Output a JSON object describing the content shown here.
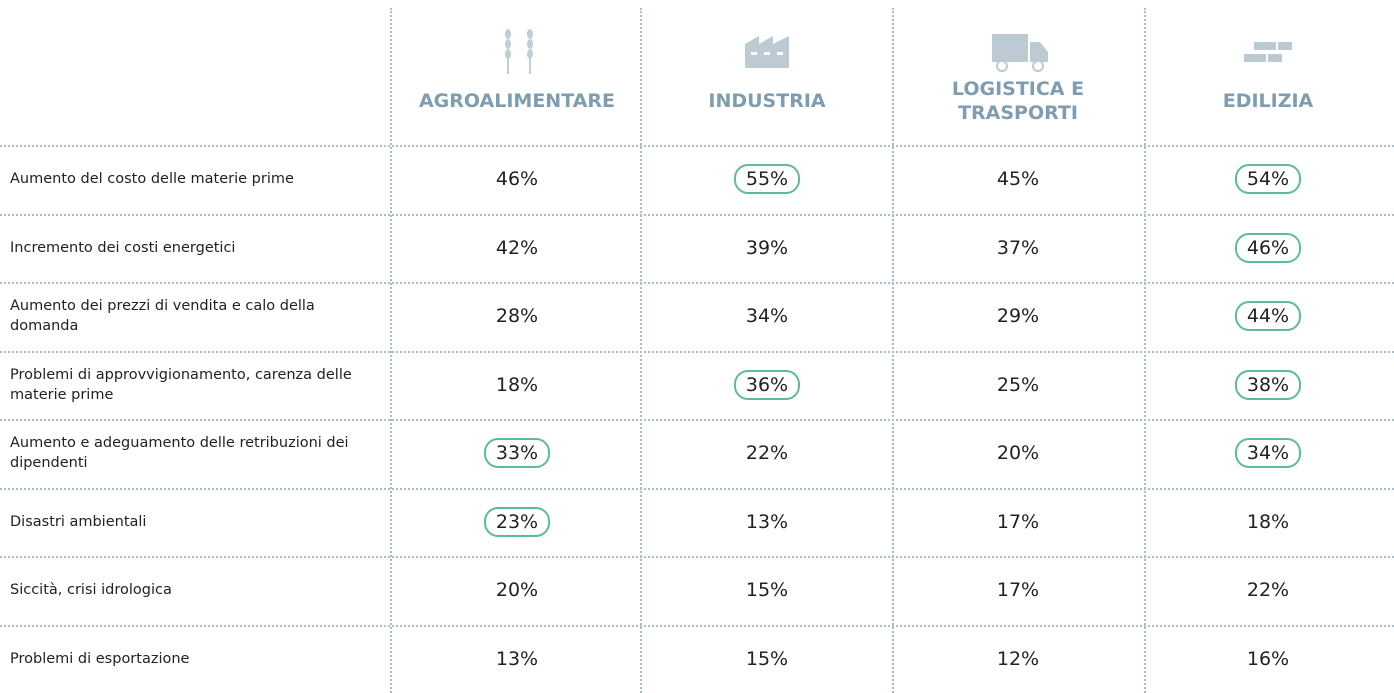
{
  "table": {
    "columns": [
      "AGROALIMENTARE",
      "INDUSTRIA",
      "LOGISTICA E TRASPORTI",
      "EDILIZIA"
    ],
    "rows": [
      {
        "label": "Aumento del costo delle materie prime",
        "cells": [
          "46%",
          "55%",
          "45%",
          "54%"
        ],
        "highlight": [
          false,
          true,
          false,
          true
        ]
      },
      {
        "label": "Incremento dei costi energetici",
        "cells": [
          "42%",
          "39%",
          "37%",
          "46%"
        ],
        "highlight": [
          false,
          false,
          false,
          true
        ]
      },
      {
        "label": "Aumento dei prezzi di vendita e calo della domanda",
        "cells": [
          "28%",
          "34%",
          "29%",
          "44%"
        ],
        "highlight": [
          false,
          false,
          false,
          true
        ]
      },
      {
        "label": "Problemi di approvvigionamento, carenza delle materie prime",
        "cells": [
          "18%",
          "36%",
          "25%",
          "38%"
        ],
        "highlight": [
          false,
          true,
          false,
          true
        ]
      },
      {
        "label": "Aumento e adeguamento delle retribuzioni dei dipendenti",
        "cells": [
          "33%",
          "22%",
          "20%",
          "34%"
        ],
        "highlight": [
          true,
          false,
          false,
          true
        ]
      },
      {
        "label": "Disastri ambientali",
        "cells": [
          "23%",
          "13%",
          "17%",
          "18%"
        ],
        "highlight": [
          true,
          false,
          false,
          false
        ]
      },
      {
        "label": "Siccità, crisi idrologica",
        "cells": [
          "20%",
          "15%",
          "17%",
          "22%"
        ],
        "highlight": [
          false,
          false,
          false,
          false
        ]
      },
      {
        "label": "Problemi di esportazione",
        "cells": [
          "13%",
          "15%",
          "12%",
          "16%"
        ],
        "highlight": [
          false,
          false,
          false,
          false
        ]
      }
    ],
    "highlight_color": "#5dbb9b",
    "header_color": "#7f9db0"
  }
}
